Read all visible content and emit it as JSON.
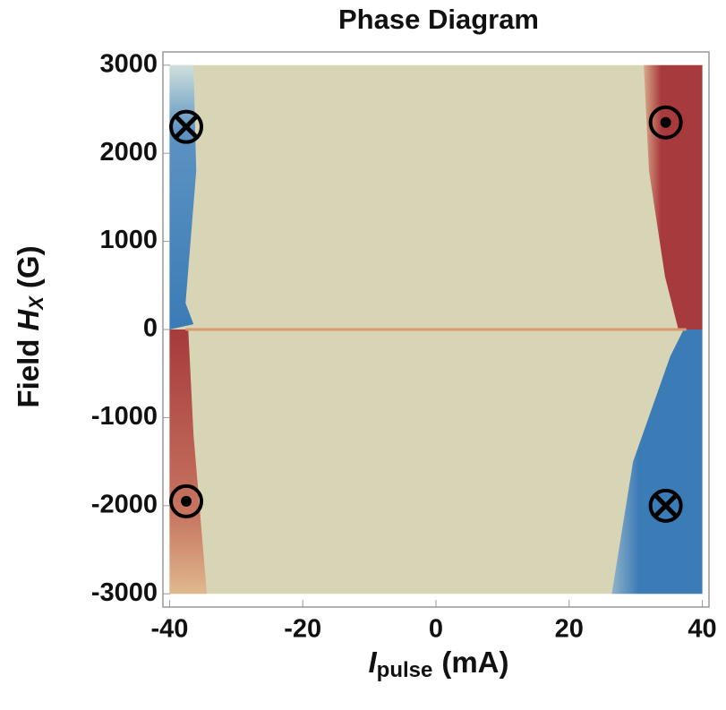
{
  "chart_data": {
    "type": "phase-map",
    "title": "Phase Diagram",
    "xlabel": {
      "symbol": "I",
      "subscript": "pulse",
      "unit": "(mA)"
    },
    "ylabel": {
      "text": "Field",
      "symbol": "H",
      "subscript": "X",
      "unit": "(G)"
    },
    "xlim": [
      -41,
      41
    ],
    "ylim": [
      -3150,
      3150
    ],
    "xticks": [
      -40,
      -20,
      0,
      20,
      40
    ],
    "yticks": [
      -3000,
      -2000,
      -1000,
      0,
      1000,
      2000,
      3000
    ],
    "background": "#d8d5b6",
    "colors": {
      "up": "#a63a3c",
      "down": "#3b7bb6"
    },
    "markers": [
      {
        "x": -37.5,
        "y": 2300,
        "symbol": "into-page"
      },
      {
        "x": 34.5,
        "y": 2350,
        "symbol": "out-of-page"
      },
      {
        "x": -37.5,
        "y": -1950,
        "symbol": "out-of-page"
      },
      {
        "x": 34.5,
        "y": -2000,
        "symbol": "into-page"
      }
    ]
  }
}
